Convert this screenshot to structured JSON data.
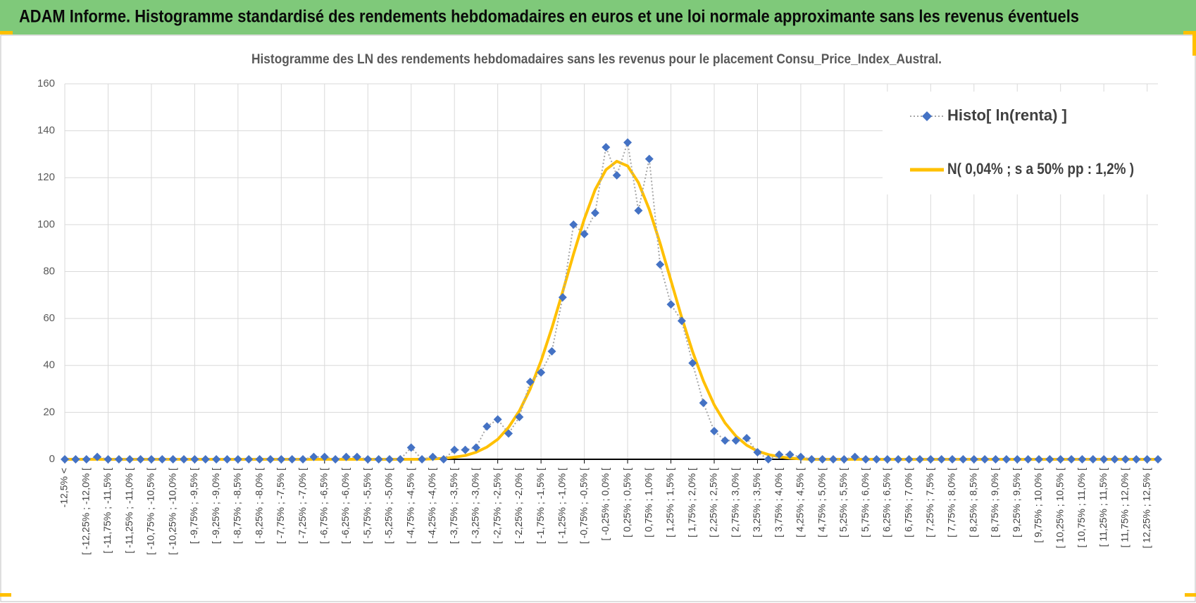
{
  "header": {
    "title": "ADAM Informe. Histogramme standardisé des rendements hebdomadaires en euros et une loi normale approximante sans les revenus éventuels"
  },
  "chart_data": {
    "type": "line",
    "title": "Histogramme  des LN des rendements hebdomadaires sans les  revenus pour le placement Consu_Price_Index_Austral.",
    "categories": [
      "-12,5% <",
      null,
      "[ -12,25% ; -12,0% [",
      null,
      "[ -11,75% ; -11,5% [",
      null,
      "[ -11,25% ; -11,0% [",
      null,
      "[ -10,75% ; -10,5% [",
      null,
      "[ -10,25% ; -10,0% [",
      null,
      "[ -9,75% ; -9,5% [",
      null,
      "[ -9,25% ; -9,0% [",
      null,
      "[ -8,75% ; -8,5% [",
      null,
      "[ -8,25% ; -8,0% [",
      null,
      "[ -7,75% ; -7,5% [",
      null,
      "[ -7,25% ; -7,0% [",
      null,
      "[ -6,75% ; -6,5% [",
      null,
      "[ -6,25% ; -6,0% [",
      null,
      "[ -5,75% ; -5,5% [",
      null,
      "[ -5,25% ; -5,0% [",
      null,
      "[ -4,75% ; -4,5% [",
      null,
      "[ -4,25% ; -4,0% [",
      null,
      "[ -3,75% ; -3,5% [",
      null,
      "[ -3,25% ; -3,0% [",
      null,
      "[ -2,75% ; -2,5% [",
      null,
      "[ -2,25% ; -2,0% [",
      null,
      "[ -1,75% ; -1,5% [",
      null,
      "[ -1,25% ; -1,0% [",
      null,
      "[ -0,75% ; -0,5% [",
      null,
      "[ -0,25% ; 0,0% [",
      null,
      "[ 0,25% ; 0,5% [",
      null,
      "[ 0,75% ; 1,0% [",
      null,
      "[ 1,25% ; 1,5% [",
      null,
      "[ 1,75% ; 2,0% [",
      null,
      "[ 2,25% ; 2,5% [",
      null,
      "[ 2,75% ; 3,0% [",
      null,
      "[ 3,25% ; 3,5% [",
      null,
      "[ 3,75% ; 4,0% [",
      null,
      "[ 4,25% ; 4,5% [",
      null,
      "[ 4,75% ; 5,0% [",
      null,
      "[ 5,25% ; 5,5% [",
      null,
      "[ 5,75% ; 6,0% [",
      null,
      "[ 6,25% ; 6,5% [",
      null,
      "[ 6,75% ; 7,0% [",
      null,
      "[ 7,25% ; 7,5% [",
      null,
      "[ 7,75% ; 8,0% [",
      null,
      "[ 8,25% ; 8,5% [",
      null,
      "[ 8,75% ; 9,0% [",
      null,
      "[ 9,25% ; 9,5% [",
      null,
      "[ 9,75% ; 10,0% [",
      null,
      "[ 10,25% ; 10,5% [",
      null,
      "[ 10,75% ; 11,0% [",
      null,
      "[ 11,25% ; 11,5% [",
      null,
      "[ 11,75% ; 12,0% [",
      null,
      "[ 12,25% ; 12,5% [",
      null
    ],
    "series": [
      {
        "name": "Histo[ ln(renta) ]",
        "color": "#4472c4",
        "values": [
          0,
          0,
          0,
          1,
          0,
          0,
          0,
          0,
          0,
          0,
          0,
          0,
          0,
          0,
          0,
          0,
          0,
          0,
          0,
          0,
          0,
          0,
          0,
          1,
          1,
          0,
          1,
          1,
          0,
          0,
          0,
          0,
          5,
          0,
          1,
          0,
          4,
          4,
          5,
          14,
          17,
          11,
          18,
          33,
          37,
          46,
          69,
          100,
          96,
          105,
          133,
          121,
          135,
          106,
          128,
          83,
          66,
          59,
          41,
          24,
          12,
          8,
          8,
          9,
          3,
          0,
          2,
          2,
          1,
          0,
          0,
          0,
          0,
          1,
          0,
          0,
          0,
          0,
          0,
          0,
          0,
          0,
          0,
          0,
          0,
          0,
          0,
          0,
          0,
          0,
          0,
          0,
          0,
          0,
          0,
          0,
          0,
          0,
          0,
          0,
          0,
          0
        ]
      },
      {
        "name": "N( 0,04% ; s a 50% pp : 1,2% )",
        "color": "#ffc000",
        "values": [
          0,
          0,
          0,
          0,
          0,
          0,
          0,
          0,
          0,
          0,
          0,
          0,
          0,
          0,
          0,
          0,
          0,
          0,
          0,
          0,
          0,
          0,
          0,
          0,
          0,
          0,
          0,
          0,
          0,
          0,
          0,
          0,
          0,
          0,
          0.2,
          0.4,
          0.9,
          1.6,
          3.0,
          5.2,
          8.5,
          13.6,
          20.6,
          30.0,
          41.9,
          55.9,
          71.4,
          87.4,
          102.4,
          114.9,
          123.4,
          127,
          125,
          117.9,
          106.5,
          92.1,
          76.2,
          60.4,
          45.9,
          33.4,
          23.2,
          15.5,
          9.9,
          6,
          3.5,
          2,
          1.1,
          0.5,
          0.2,
          0,
          0,
          0,
          0,
          0,
          0,
          0,
          0,
          0,
          0,
          0,
          0,
          0,
          0,
          0,
          0,
          0,
          0,
          0,
          0,
          0,
          0,
          0,
          0,
          0,
          0,
          0,
          0,
          0,
          0,
          0,
          0,
          0
        ]
      }
    ],
    "ylim": [
      0,
      160
    ],
    "yticks": [
      0,
      20,
      40,
      60,
      80,
      100,
      120,
      140,
      160
    ],
    "grid": true,
    "legend": "upper right"
  }
}
